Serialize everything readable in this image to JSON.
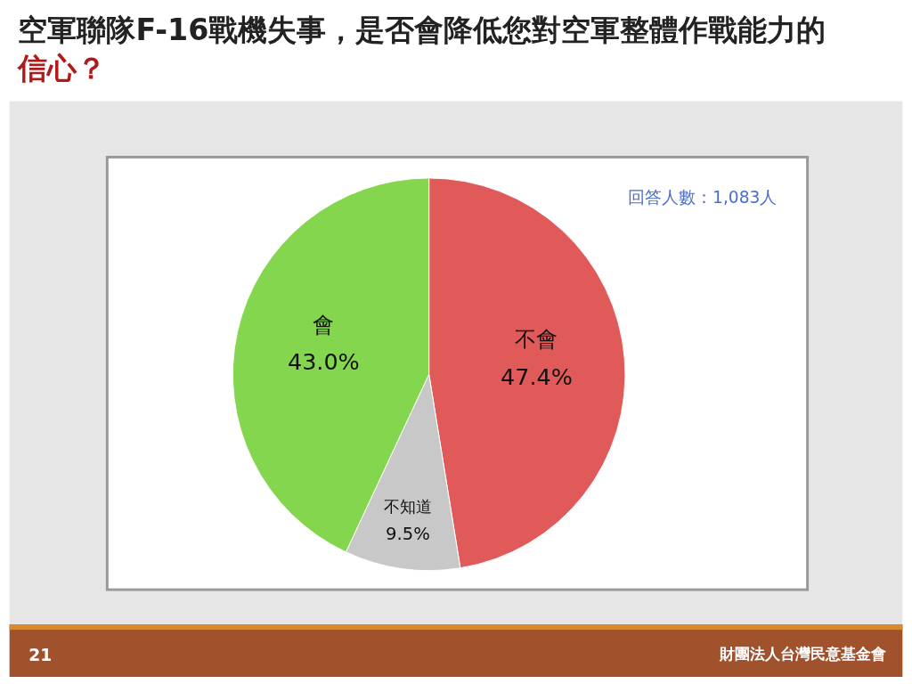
{
  "chart_data": {
    "type": "pie",
    "title": "空軍聯隊F-16戰機失事，是否會降低您對空軍整體作戰能力的信心？",
    "categories": [
      "不會",
      "不知道",
      "會"
    ],
    "values": [
      47.4,
      9.5,
      43.0
    ],
    "colors": [
      "#e05a5a",
      "#c8c8c8",
      "#84d64e"
    ],
    "value_labels": [
      "47.4%",
      "9.5%",
      "43.0%"
    ],
    "annotations": [
      "回答人數：1,083人",
      "21",
      "財團法人台灣民意基金會"
    ]
  }
}
